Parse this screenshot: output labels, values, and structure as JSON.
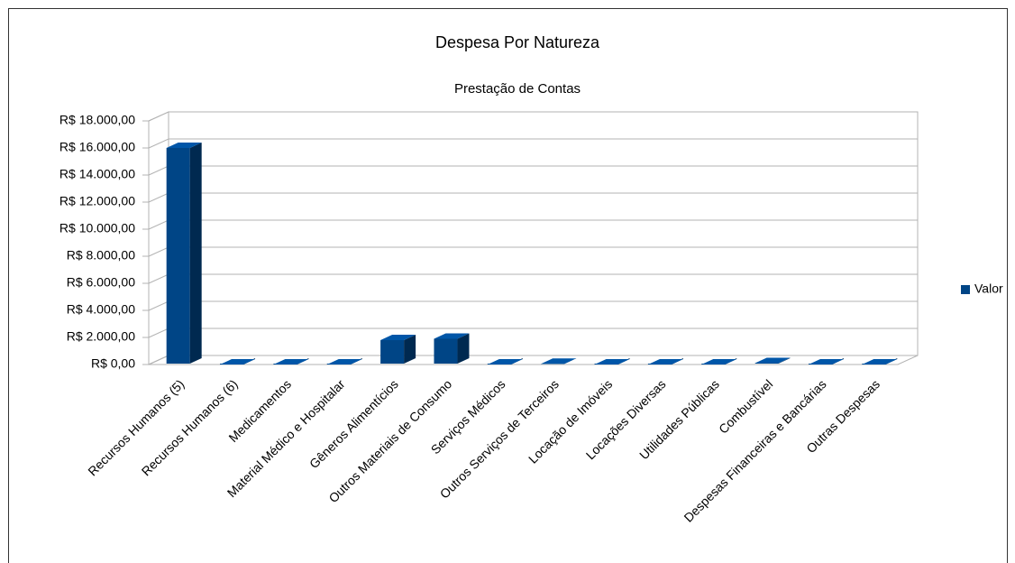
{
  "chart_data": {
    "type": "bar3d",
    "title": "Despesa Por Natureza",
    "subtitle": "Prestação de Contas",
    "categories": [
      "Recursos Humanos (5)",
      "Recursos Humanos (6)",
      "Medicamentos",
      "Material Médico e Hospitalar",
      "Gêneros Alimentícios",
      "Outros Materiais de Consumo",
      "Serviços Médicos",
      "Outros Serviços de Terceiros",
      "Locação de Imóveis",
      "Locações Diversas",
      "Utilidades Públicas",
      "Combustível",
      "Despesas Financeiras e Bancárias",
      "Outras Despesas"
    ],
    "series": [
      {
        "name": "Valor",
        "color": "#004586",
        "values": [
          16000,
          0,
          0,
          0,
          1800,
          1900,
          0,
          50,
          0,
          0,
          0,
          100,
          0,
          0
        ]
      }
    ],
    "ylim": [
      0,
      18000
    ],
    "yticks": [
      {
        "value": 0,
        "label": "R$ 0,00"
      },
      {
        "value": 2000,
        "label": "R$ 2.000,00"
      },
      {
        "value": 4000,
        "label": "R$ 4.000,00"
      },
      {
        "value": 6000,
        "label": "R$ 6.000,00"
      },
      {
        "value": 8000,
        "label": "R$ 8.000,00"
      },
      {
        "value": 10000,
        "label": "R$ 10.000,00"
      },
      {
        "value": 12000,
        "label": "R$ 12.000,00"
      },
      {
        "value": 14000,
        "label": "R$ 14.000,00"
      },
      {
        "value": 16000,
        "label": "R$ 16.000,00"
      },
      {
        "value": 18000,
        "label": "R$ 18.000,00"
      }
    ],
    "grid": true,
    "legend": "right"
  }
}
